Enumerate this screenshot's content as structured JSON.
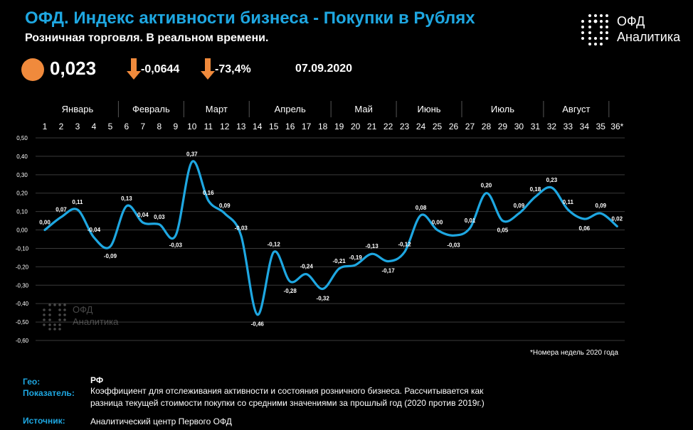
{
  "header": {
    "title": "ОФД. Индекс активности бизнеса - Покупки в Рублях",
    "subtitle": "Розничная торговля. В реальном времени."
  },
  "logo": {
    "line1": "ОФД",
    "line2": "Аналитика"
  },
  "kpi": {
    "value": "0,023",
    "delta_abs": "-0,0644",
    "delta_pct": "-73,4%",
    "date": "07.09.2020",
    "circle_color": "#f08a3c",
    "arrow_color": "#f08a3c"
  },
  "watermark": {
    "line1": "ОФД",
    "line2": "Аналитика"
  },
  "note": "*Номера недель 2020 года",
  "footer": {
    "geo_label": "Гео:",
    "geo_value": "РФ",
    "indicator_label": "Показатель:",
    "indicator_line1": "Коэффициент для отслеживания активности и состояния розничного бизнеса. Рассчитывается как",
    "indicator_line2": "разница текущей стоимости покупки со средними значениями за прошлый год (2020 против 2019г.)",
    "source_label": "Источник:",
    "source_value": "Аналитический центр  Первого ОФД"
  },
  "chart_data": {
    "type": "line",
    "title": "",
    "xlabel": "",
    "ylabel": "",
    "ylim": [
      -0.6,
      0.5
    ],
    "yticks": [
      "0,50",
      "0,40",
      "0,30",
      "0,20",
      "0,10",
      "0,00",
      "-0,10",
      "-0,20",
      "-0,30",
      "-0,40",
      "-0,50",
      "-0,60"
    ],
    "grid": true,
    "line_color": "#1ea7e1",
    "x": [
      1,
      2,
      3,
      4,
      5,
      6,
      7,
      8,
      9,
      10,
      11,
      12,
      13,
      14,
      15,
      16,
      17,
      18,
      19,
      20,
      21,
      22,
      23,
      24,
      25,
      26,
      27,
      28,
      29,
      30,
      31,
      32,
      33,
      34,
      35,
      36
    ],
    "x_labels": [
      "1",
      "2",
      "3",
      "4",
      "5",
      "6",
      "7",
      "8",
      "9",
      "10",
      "11",
      "12",
      "13",
      "14",
      "15",
      "16",
      "17",
      "18",
      "19",
      "20",
      "21",
      "22",
      "23",
      "24",
      "25",
      "26",
      "27",
      "28",
      "29",
      "30",
      "31",
      "32",
      "33",
      "34",
      "35",
      "36*"
    ],
    "months": [
      {
        "name": "Январь",
        "start": 1,
        "end": 5
      },
      {
        "name": "Февраль",
        "start": 6,
        "end": 9
      },
      {
        "name": "Март",
        "start": 10,
        "end": 13
      },
      {
        "name": "Апрель",
        "start": 14,
        "end": 18
      },
      {
        "name": "Май",
        "start": 19,
        "end": 22
      },
      {
        "name": "Июнь",
        "start": 23,
        "end": 26
      },
      {
        "name": "Июль",
        "start": 27,
        "end": 31
      },
      {
        "name": "Август",
        "start": 32,
        "end": 35
      }
    ],
    "values": [
      0.0,
      0.07,
      0.11,
      -0.04,
      -0.09,
      0.13,
      0.04,
      0.03,
      -0.03,
      0.37,
      0.16,
      0.09,
      -0.03,
      -0.46,
      -0.12,
      -0.28,
      -0.24,
      -0.32,
      -0.21,
      -0.19,
      -0.13,
      -0.17,
      -0.12,
      0.08,
      0.0,
      -0.03,
      0.01,
      0.2,
      0.05,
      0.09,
      0.18,
      0.23,
      0.11,
      0.06,
      0.09,
      0.02
    ],
    "data_labels": [
      "0,00",
      "0,07",
      "0,11",
      "-0,04",
      "-0,09",
      "0,13",
      "0,04",
      "0,03",
      "-0,03",
      "0,37",
      "0,16",
      "0,09",
      "-0,03",
      "-0,46",
      "-0,12",
      "-0,28",
      "-0,24",
      "-0,32",
      "-0,21",
      "-0,19",
      "-0,13",
      "-0,17",
      "-0,12",
      "0,08",
      "0,00",
      "-0,03",
      "0,01",
      "0,20",
      "0,05",
      "0,09",
      "0,18",
      "0,23",
      "0,11",
      "0,06",
      "0,09",
      "0,02"
    ]
  }
}
